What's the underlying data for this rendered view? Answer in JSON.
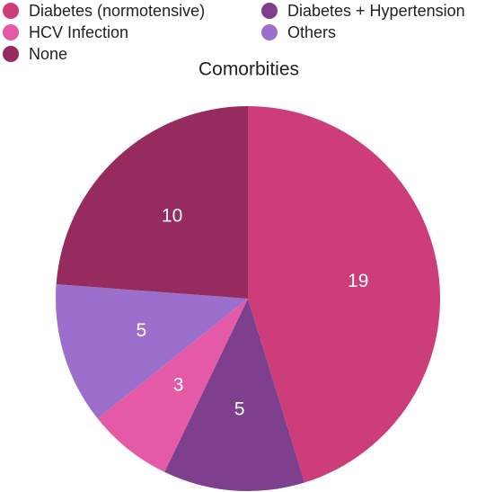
{
  "chart_data": {
    "type": "pie",
    "title": "Comorbities",
    "categories": [
      "Diabetes (normotensive)",
      "Diabetes + Hypertension",
      "HCV Infection",
      "Others",
      "None"
    ],
    "values": [
      19,
      5,
      3,
      5,
      10
    ],
    "colors": [
      "#cc3d7a",
      "#7e3f8f",
      "#e55aa6",
      "#9d6fcc",
      "#952b5e"
    ],
    "legend": "top-left"
  }
}
